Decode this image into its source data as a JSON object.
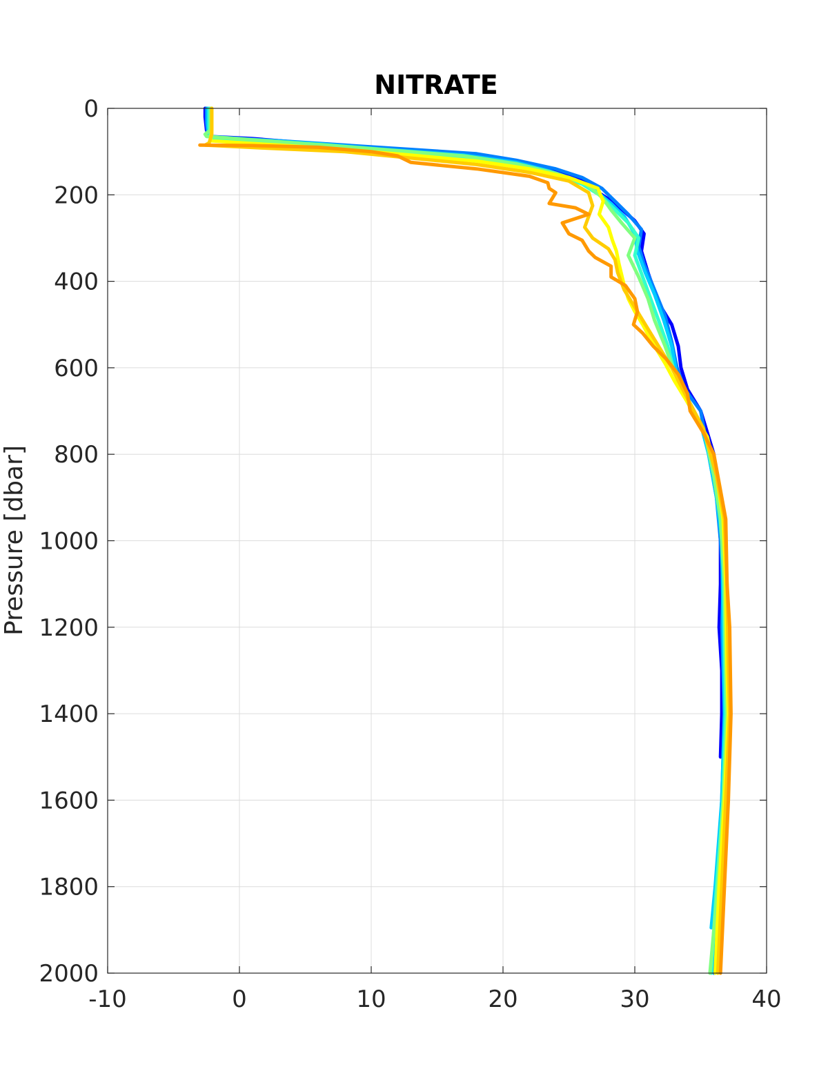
{
  "chart_data": {
    "type": "line",
    "title": "NITRATE",
    "xlabel": "",
    "ylabel": "Pressure [dbar]",
    "xlim": [
      -10,
      40
    ],
    "ylim": [
      0,
      2000
    ],
    "y_reversed": true,
    "grid": true,
    "x_ticks": [
      "-10",
      "0",
      "10",
      "20",
      "30",
      "40"
    ],
    "y_ticks": [
      "0",
      "200",
      "400",
      "600",
      "800",
      "1000",
      "1200",
      "1400",
      "1600",
      "1800",
      "2000"
    ],
    "series": [
      {
        "color": "#0000ff",
        "points": [
          [
            -2.6,
            0
          ],
          [
            -2.6,
            20
          ],
          [
            -2.5,
            50
          ],
          [
            -2.3,
            65
          ],
          [
            1,
            70
          ],
          [
            5,
            80
          ],
          [
            10,
            90
          ],
          [
            17,
            110
          ],
          [
            21,
            125
          ],
          [
            24,
            145
          ],
          [
            26,
            165
          ],
          [
            27,
            190
          ],
          [
            28.5,
            220
          ],
          [
            30,
            260
          ],
          [
            30.7,
            290
          ],
          [
            30.5,
            330
          ],
          [
            31,
            380
          ],
          [
            31.8,
            450
          ],
          [
            32.8,
            500
          ],
          [
            33.3,
            550
          ],
          [
            33.5,
            600
          ],
          [
            34,
            650
          ],
          [
            35,
            700
          ],
          [
            35.5,
            750
          ],
          [
            36,
            800
          ],
          [
            36.3,
            900
          ],
          [
            36.5,
            1000
          ],
          [
            36.5,
            1100
          ],
          [
            36.4,
            1200
          ],
          [
            36.6,
            1300
          ],
          [
            36.6,
            1400
          ],
          [
            36.5,
            1500
          ]
        ]
      },
      {
        "color": "#0080ff",
        "points": [
          [
            -2.5,
            0
          ],
          [
            -2.5,
            30
          ],
          [
            -2.4,
            60
          ],
          [
            -2,
            68
          ],
          [
            3,
            75
          ],
          [
            8,
            85
          ],
          [
            13,
            95
          ],
          [
            18,
            105
          ],
          [
            21,
            120
          ],
          [
            24,
            140
          ],
          [
            26,
            160
          ],
          [
            27.5,
            185
          ],
          [
            28.5,
            215
          ],
          [
            29.5,
            245
          ],
          [
            30.5,
            280
          ],
          [
            30.3,
            320
          ],
          [
            30.7,
            360
          ],
          [
            31.5,
            420
          ],
          [
            32.3,
            480
          ],
          [
            32.8,
            540
          ],
          [
            33.2,
            600
          ],
          [
            33.8,
            650
          ],
          [
            35,
            700
          ],
          [
            35.6,
            800
          ],
          [
            36.2,
            900
          ],
          [
            36.5,
            1000
          ],
          [
            36.7,
            1100
          ],
          [
            36.6,
            1200
          ],
          [
            36.7,
            1300
          ],
          [
            36.8,
            1400
          ],
          [
            36.6,
            1600
          ],
          [
            36.3,
            1800
          ],
          [
            36,
            2000
          ]
        ]
      },
      {
        "color": "#00ccff",
        "points": [
          [
            -2.4,
            0
          ],
          [
            -2.4,
            40
          ],
          [
            -2.3,
            65
          ],
          [
            1,
            72
          ],
          [
            6,
            82
          ],
          [
            11,
            95
          ],
          [
            17,
            108
          ],
          [
            21,
            125
          ],
          [
            23.5,
            145
          ],
          [
            25.5,
            165
          ],
          [
            27,
            190
          ],
          [
            28.2,
            220
          ],
          [
            29.2,
            250
          ],
          [
            30,
            290
          ],
          [
            30.2,
            330
          ],
          [
            30.8,
            380
          ],
          [
            31.5,
            430
          ],
          [
            32.2,
            490
          ],
          [
            32.8,
            550
          ],
          [
            33.2,
            620
          ],
          [
            34,
            680
          ],
          [
            35,
            730
          ],
          [
            35.6,
            800
          ],
          [
            36.2,
            900
          ],
          [
            36.6,
            1000
          ],
          [
            36.7,
            1200
          ],
          [
            36.8,
            1400
          ],
          [
            36.6,
            1600
          ],
          [
            36.1,
            1800
          ],
          [
            35.8,
            1895
          ]
        ]
      },
      {
        "color": "#33ffcc",
        "points": [
          [
            -2.3,
            0
          ],
          [
            -2.3,
            45
          ],
          [
            -2.2,
            70
          ],
          [
            2,
            78
          ],
          [
            7,
            88
          ],
          [
            12,
            100
          ],
          [
            17,
            112
          ],
          [
            21,
            130
          ],
          [
            24,
            152
          ],
          [
            26,
            175
          ],
          [
            27.3,
            200
          ],
          [
            28.5,
            235
          ],
          [
            29.5,
            265
          ],
          [
            30.3,
            300
          ],
          [
            30,
            340
          ],
          [
            30.6,
            390
          ],
          [
            31.2,
            440
          ],
          [
            31.8,
            490
          ],
          [
            32.5,
            550
          ],
          [
            33,
            610
          ],
          [
            34,
            670
          ],
          [
            35,
            730
          ],
          [
            35.8,
            800
          ],
          [
            36.3,
            900
          ],
          [
            36.7,
            1000
          ],
          [
            36.8,
            1200
          ],
          [
            36.9,
            1400
          ],
          [
            36.7,
            1600
          ],
          [
            36.2,
            1800
          ],
          [
            35.8,
            2000
          ]
        ]
      },
      {
        "color": "#80ff80",
        "points": [
          [
            -2.2,
            0
          ],
          [
            -2.2,
            50
          ],
          [
            -2.6,
            60
          ],
          [
            -2.5,
            65
          ],
          [
            2,
            75
          ],
          [
            7,
            86
          ],
          [
            12,
            98
          ],
          [
            17,
            110
          ],
          [
            21,
            128
          ],
          [
            24,
            150
          ],
          [
            26.3,
            175
          ],
          [
            27.5,
            205
          ],
          [
            28.2,
            235
          ],
          [
            29,
            265
          ],
          [
            30,
            300
          ],
          [
            29.5,
            340
          ],
          [
            30.3,
            390
          ],
          [
            31,
            440
          ],
          [
            31.5,
            490
          ],
          [
            32.3,
            550
          ],
          [
            33,
            610
          ],
          [
            34,
            680
          ],
          [
            35.3,
            750
          ],
          [
            36,
            850
          ],
          [
            36.5,
            950
          ],
          [
            36.8,
            1100
          ],
          [
            36.9,
            1300
          ],
          [
            37,
            1400
          ],
          [
            36.7,
            1600
          ],
          [
            36.3,
            1800
          ],
          [
            35.7,
            2000
          ]
        ]
      },
      {
        "color": "#ffff00",
        "points": [
          [
            -2.1,
            0
          ],
          [
            -2.1,
            50
          ],
          [
            -2.2,
            75
          ],
          [
            3,
            85
          ],
          [
            8,
            95
          ],
          [
            13,
            108
          ],
          [
            18,
            122
          ],
          [
            22,
            140
          ],
          [
            25,
            160
          ],
          [
            27.2,
            185
          ],
          [
            27.6,
            215
          ],
          [
            27.3,
            245
          ],
          [
            28,
            275
          ],
          [
            28.3,
            305
          ],
          [
            28.6,
            330
          ],
          [
            28.8,
            360
          ],
          [
            29.2,
            410
          ],
          [
            29.5,
            440
          ],
          [
            30,
            470
          ],
          [
            30.6,
            500
          ],
          [
            31.3,
            540
          ],
          [
            32.3,
            590
          ],
          [
            33,
            630
          ],
          [
            34,
            680
          ],
          [
            35.5,
            760
          ],
          [
            36.2,
            850
          ],
          [
            36.7,
            950
          ],
          [
            36.9,
            1100
          ],
          [
            37,
            1300
          ],
          [
            37.1,
            1400
          ],
          [
            36.8,
            1600
          ],
          [
            36.4,
            1800
          ],
          [
            36.1,
            2000
          ]
        ]
      },
      {
        "color": "#ffcc00",
        "points": [
          [
            -2.1,
            0
          ],
          [
            -2.1,
            60
          ],
          [
            -2.3,
            80
          ],
          [
            -2.6,
            85
          ],
          [
            2,
            92
          ],
          [
            8,
            100
          ],
          [
            13,
            115
          ],
          [
            18,
            130
          ],
          [
            22,
            148
          ],
          [
            25,
            168
          ],
          [
            26.5,
            195
          ],
          [
            26.8,
            225
          ],
          [
            26.5,
            250
          ],
          [
            26.2,
            275
          ],
          [
            26.8,
            300
          ],
          [
            28,
            325
          ],
          [
            28.5,
            350
          ],
          [
            28.7,
            380
          ],
          [
            29.2,
            420
          ],
          [
            30,
            460
          ],
          [
            30.8,
            500
          ],
          [
            31.8,
            550
          ],
          [
            32.8,
            600
          ],
          [
            33.8,
            660
          ],
          [
            35.2,
            740
          ],
          [
            36.2,
            850
          ],
          [
            36.8,
            950
          ],
          [
            37,
            1100
          ],
          [
            37.1,
            1300
          ],
          [
            37.2,
            1400
          ],
          [
            36.9,
            1600
          ],
          [
            36.6,
            1800
          ],
          [
            36.3,
            2000
          ]
        ]
      },
      {
        "color": "#ff9900",
        "points": [
          [
            -3,
            85
          ],
          [
            1,
            86
          ],
          [
            6,
            90
          ],
          [
            10,
            100
          ],
          [
            12,
            110
          ],
          [
            13,
            125
          ],
          [
            18,
            140
          ],
          [
            22,
            157
          ],
          [
            23.4,
            172
          ],
          [
            23.5,
            185
          ],
          [
            24,
            195
          ],
          [
            23.5,
            220
          ],
          [
            25.5,
            230
          ],
          [
            26.5,
            245
          ],
          [
            25.5,
            255
          ],
          [
            24.5,
            265
          ],
          [
            25,
            290
          ],
          [
            26,
            305
          ],
          [
            26.5,
            330
          ],
          [
            27,
            345
          ],
          [
            28.2,
            365
          ],
          [
            28.2,
            390
          ],
          [
            29.3,
            410
          ],
          [
            30,
            440
          ],
          [
            30.2,
            470
          ],
          [
            29.9,
            500
          ],
          [
            30.6,
            520
          ],
          [
            31.4,
            550
          ],
          [
            32.4,
            580
          ],
          [
            33.3,
            615
          ],
          [
            34,
            660
          ],
          [
            34.2,
            700
          ],
          [
            35.2,
            750
          ],
          [
            36,
            800
          ],
          [
            36.6,
            900
          ],
          [
            36.9,
            950
          ],
          [
            37,
            1100
          ],
          [
            37.2,
            1200
          ],
          [
            37.3,
            1400
          ],
          [
            37.1,
            1600
          ],
          [
            36.8,
            1800
          ],
          [
            36.5,
            2000
          ]
        ]
      }
    ]
  }
}
